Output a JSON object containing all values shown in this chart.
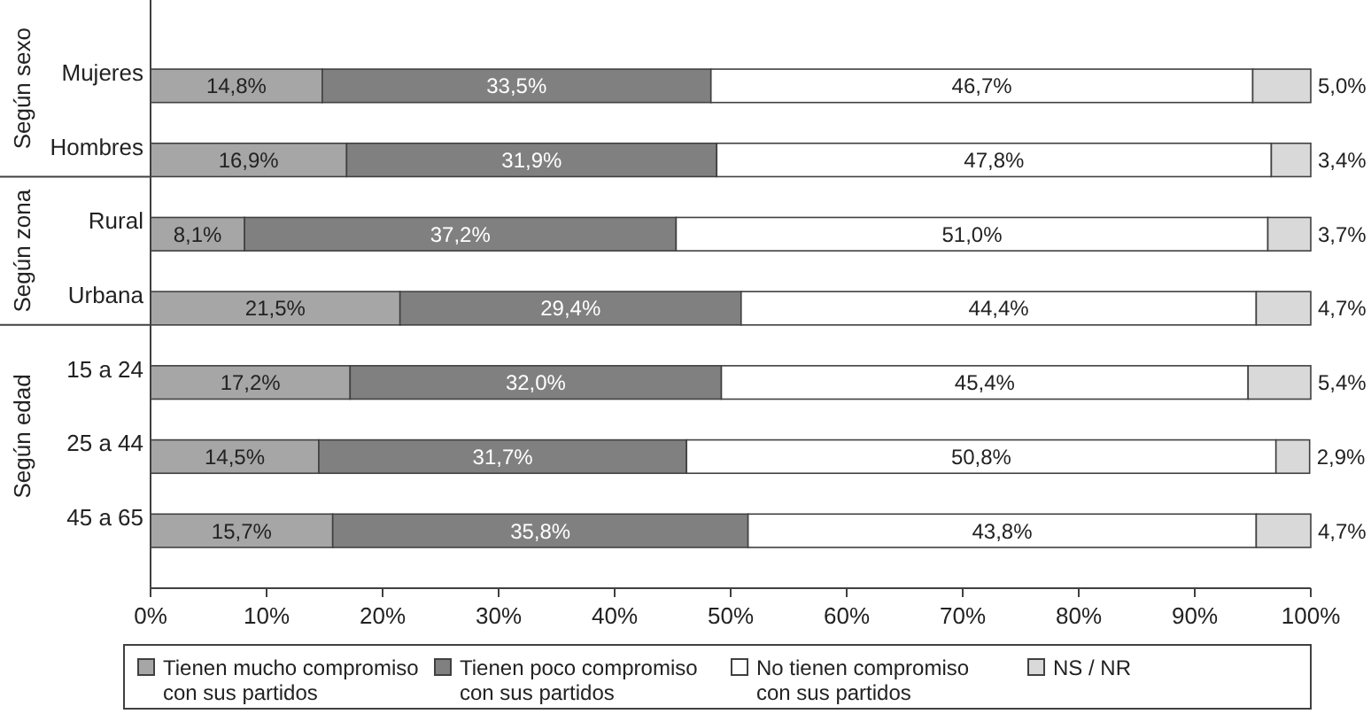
{
  "chart_data": {
    "type": "bar",
    "orientation": "horizontal",
    "stacked": true,
    "legend": "bottom",
    "grid": false,
    "categories": [
      "Mujeres",
      "Hombres",
      "Rural",
      "Urbana",
      "15 a 24",
      "25 a 44",
      "45 a 65"
    ],
    "annotations": [
      "Según sexo",
      "Según zona",
      "Según edad"
    ],
    "xlim": [
      0,
      100
    ],
    "xticks": [
      {
        "value": 0,
        "label": "0%"
      },
      {
        "value": 10,
        "label": "10%"
      },
      {
        "value": 20,
        "label": "20%"
      },
      {
        "value": 30,
        "label": "30%"
      },
      {
        "value": 40,
        "label": "40%"
      },
      {
        "value": 50,
        "label": "50%"
      },
      {
        "value": 60,
        "label": "60%"
      },
      {
        "value": 70,
        "label": "70%"
      },
      {
        "value": 80,
        "label": "80%"
      },
      {
        "value": 90,
        "label": "90%"
      },
      {
        "value": 100,
        "label": "100%"
      }
    ],
    "series": [
      {
        "name": "Tienen mucho compromiso con sus partidos",
        "color": "#a6a6a6",
        "values": [
          14.8,
          16.9,
          8.1,
          21.5,
          17.2,
          14.5,
          15.7
        ],
        "value_labels": [
          "14,8%",
          "16,9%",
          "8,1%",
          "21,5%",
          "17,2%",
          "14,5%",
          "15,7%"
        ]
      },
      {
        "name": "Tienen poco compromiso con sus partidos",
        "color": "#808080",
        "values": [
          33.5,
          31.9,
          37.2,
          29.4,
          32.0,
          31.7,
          35.8
        ],
        "value_labels": [
          "33,5%",
          "31,9%",
          "37,2%",
          "29,4%",
          "32,0%",
          "31,7%",
          "35,8%"
        ]
      },
      {
        "name": "No tienen compromiso con sus partidos",
        "color": "#ffffff",
        "values": [
          46.7,
          47.8,
          51.0,
          44.4,
          45.4,
          50.8,
          43.8
        ],
        "value_labels": [
          "46,7%",
          "47,8%",
          "51,0%",
          "44,4%",
          "45,4%",
          "50,8%",
          "43,8%"
        ]
      },
      {
        "name": "NS / NR",
        "color": "#d9d9d9",
        "values": [
          5.0,
          3.4,
          3.7,
          4.7,
          5.4,
          2.9,
          4.7
        ],
        "value_labels": [
          "5,0%",
          "3,4%",
          "3,7%",
          "4,7%",
          "5,4%",
          "2,9%",
          "4,7%"
        ]
      }
    ]
  }
}
